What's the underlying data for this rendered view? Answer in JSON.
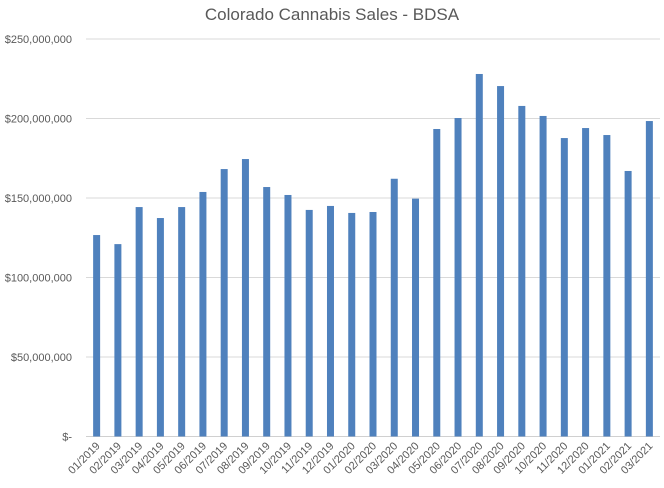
{
  "chart_data": {
    "type": "bar",
    "title": "Colorado Cannabis Sales - BDSA",
    "xlabel": "",
    "ylabel": "",
    "ylim": [
      0,
      250000000
    ],
    "grid": true,
    "legend": "none",
    "bar_color": "#4F81BD",
    "y_ticks": [
      0,
      50000000,
      100000000,
      150000000,
      200000000,
      250000000
    ],
    "y_tick_labels": [
      "$-",
      "$50,000,000",
      "$100,000,000",
      "$150,000,000",
      "$200,000,000",
      "$250,000,000"
    ],
    "categories": [
      "01/2019",
      "02/2019",
      "03/2019",
      "04/2019",
      "05/2019",
      "06/2019",
      "07/2019",
      "08/2019",
      "09/2019",
      "10/2019",
      "11/2019",
      "12/2019",
      "01/2020",
      "02/2020",
      "03/2020",
      "04/2020",
      "05/2020",
      "06/2020",
      "07/2020",
      "08/2020",
      "09/2020",
      "10/2020",
      "11/2020",
      "12/2020",
      "01/2021",
      "02/2021",
      "03/2021"
    ],
    "values": [
      126700000,
      121000000,
      144300000,
      137400000,
      144300000,
      153800000,
      168200000,
      174500000,
      156900000,
      151900000,
      142500000,
      145000000,
      140600000,
      141200000,
      162100000,
      149600000,
      193400000,
      200300000,
      228000000,
      220400000,
      207900000,
      201600000,
      187700000,
      194000000,
      189600000,
      167000000,
      198400000
    ]
  }
}
